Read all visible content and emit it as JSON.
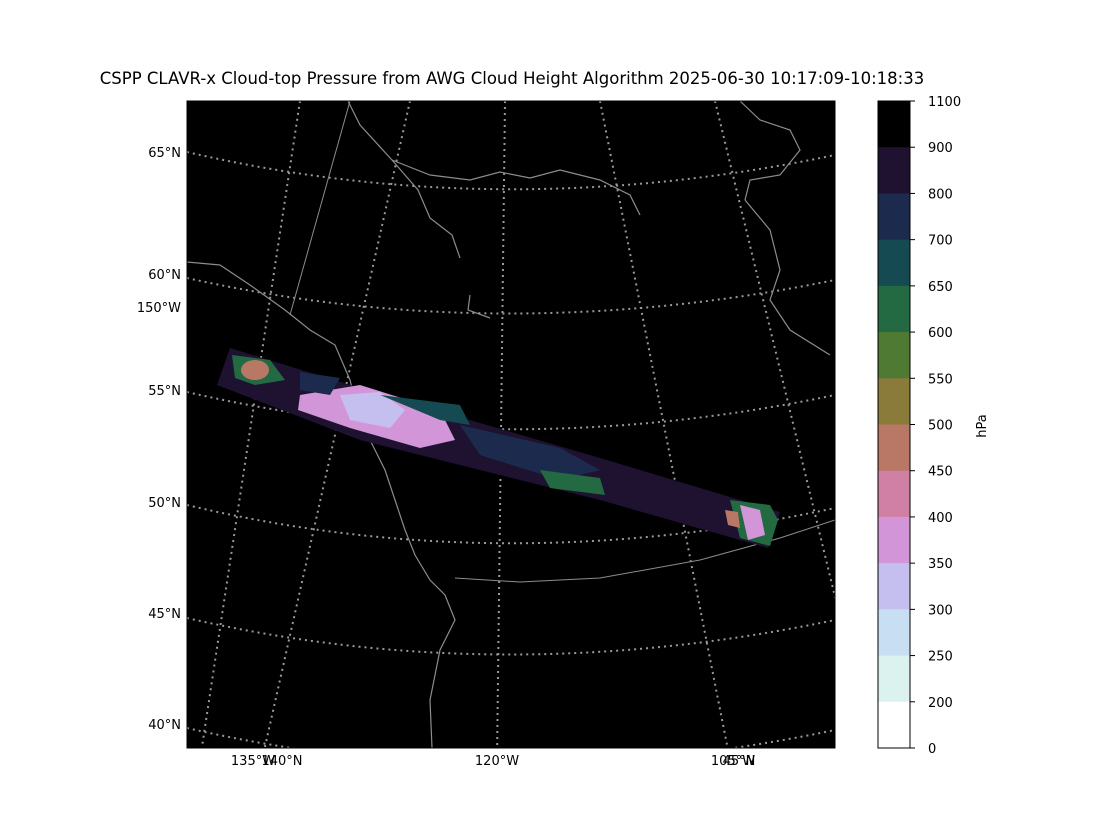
{
  "title": "CSPP CLAVR-x Cloud-top Pressure from AWG Cloud Height Algorithm 2025-06-30 10:17:09-10:18:33",
  "map": {
    "background": "#000000",
    "gridline_color": "#9a9a9a",
    "coastline_color": "#8c8c8c",
    "lat_labels": [
      "65°N",
      "60°N",
      "55°N",
      "50°N",
      "45°N",
      "40°N"
    ],
    "lon_labels_left": [
      "150°W"
    ],
    "lon_labels_bottom": [
      "135°W",
      "140°N",
      "120°W",
      "105°W",
      "45°N"
    ]
  },
  "colorbar": {
    "label": "hPa",
    "ticks": [
      "1100",
      "900",
      "800",
      "700",
      "650",
      "600",
      "550",
      "500",
      "450",
      "400",
      "350",
      "300",
      "250",
      "200",
      "0"
    ],
    "bin_colors": [
      "#000000",
      "#1e1230",
      "#1c2b4d",
      "#164a52",
      "#236a42",
      "#4f7a33",
      "#8a7b3a",
      "#b87865",
      "#d080a4",
      "#d296d8",
      "#c5bff0",
      "#c8dff3",
      "#dcf2ee",
      "#ffffff"
    ]
  }
}
